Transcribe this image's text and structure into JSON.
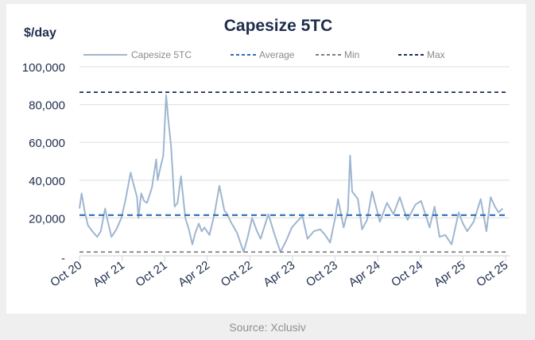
{
  "chart_data": {
    "type": "line",
    "title": "Capesize 5TC",
    "ylabel": "$/day",
    "xlabel": "",
    "ylim": [
      0,
      100000
    ],
    "xlim_months_since_oct20": [
      0,
      60
    ],
    "yticks": [
      {
        "value": 100000,
        "label": "100,000"
      },
      {
        "value": 80000,
        "label": "80,000"
      },
      {
        "value": 60000,
        "label": "60,000"
      },
      {
        "value": 40000,
        "label": "40,000"
      },
      {
        "value": 20000,
        "label": "20,000"
      },
      {
        "value": 0,
        "label": "-"
      }
    ],
    "xticks": [
      {
        "value": 0,
        "label": "Oct 20"
      },
      {
        "value": 6,
        "label": "Apr 21"
      },
      {
        "value": 12,
        "label": "Oct 21"
      },
      {
        "value": 18,
        "label": "Apr 22"
      },
      {
        "value": 24,
        "label": "Oct 22"
      },
      {
        "value": 30,
        "label": "Apr 23"
      },
      {
        "value": 36,
        "label": "Oct 23"
      },
      {
        "value": 42,
        "label": "Apr 24"
      },
      {
        "value": 48,
        "label": "Oct 24"
      },
      {
        "value": 54,
        "label": "Apr 25"
      },
      {
        "value": 60,
        "label": "Oct 25"
      }
    ],
    "grid": true,
    "legend_position": "top",
    "series": [
      {
        "name": "Capesize 5TC",
        "color": "#9fb6d0",
        "style": "solid",
        "x": [
          0,
          0.3,
          0.7,
          1.2,
          1.8,
          2.5,
          3.0,
          3.6,
          4.0,
          4.5,
          5.2,
          5.9,
          6.5,
          7.2,
          7.6,
          8.1,
          8.3,
          8.7,
          9.1,
          9.5,
          10.2,
          10.8,
          11.0,
          11.3,
          11.8,
          12.2,
          12.5,
          12.9,
          13.4,
          13.8,
          14.3,
          14.9,
          15.4,
          15.9,
          16.3,
          16.8,
          17.2,
          17.6,
          18.3,
          19.0,
          19.7,
          20.4,
          20.8,
          21.3,
          22.2,
          23.1,
          23.7,
          24.3,
          25.0,
          25.5,
          26.0,
          26.6,
          27.4,
          28.3,
          29.1,
          29.9,
          30.6,
          31.4,
          32.1,
          33.0,
          33.9,
          34.6,
          35.3,
          36.0,
          36.4,
          37.2,
          37.8,
          38.1,
          38.4,
          39.2,
          39.8,
          40.5,
          41.2,
          42.3,
          42.8,
          43.3,
          44.2,
          45.1,
          45.7,
          46.2,
          47.3,
          48.1,
          48.7,
          49.3,
          50.0,
          50.7,
          51.5,
          52.4,
          53.4,
          54.0,
          54.6,
          55.5,
          56.5,
          57.3,
          57.9,
          58.5,
          59.0,
          59.6
        ],
        "y": [
          25000,
          33000,
          24000,
          16000,
          13000,
          10000,
          13000,
          25000,
          18000,
          10000,
          14000,
          20000,
          30000,
          44000,
          38000,
          31000,
          20000,
          33000,
          29000,
          28000,
          36000,
          51000,
          40000,
          45000,
          53000,
          85000,
          72000,
          58000,
          26000,
          28000,
          42000,
          20000,
          14000,
          6000,
          12000,
          17000,
          13000,
          15000,
          11000,
          22000,
          37000,
          24000,
          22000,
          18000,
          12000,
          2000,
          10000,
          20000,
          13000,
          9000,
          15000,
          22000,
          12000,
          2000,
          8000,
          15000,
          18000,
          21000,
          9000,
          13000,
          14000,
          11000,
          7000,
          20000,
          30000,
          15000,
          24000,
          53000,
          34000,
          30000,
          14000,
          19000,
          34000,
          18000,
          23000,
          28000,
          22000,
          31000,
          24000,
          19000,
          27000,
          29000,
          22000,
          15000,
          26000,
          10000,
          11000,
          6000,
          23000,
          17000,
          13000,
          18000,
          30000,
          13000,
          31000,
          26000,
          23000,
          25000
        ]
      },
      {
        "name": "Average",
        "color": "#2e6fb5",
        "style": "dashed",
        "value": 21500
      },
      {
        "name": "Min",
        "color": "#7f7f7f",
        "style": "dashed",
        "value": 2000
      },
      {
        "name": "Max",
        "color": "#1f2d5c",
        "style": "dashed",
        "value": 86500
      }
    ]
  },
  "source": "Source: Xclusiv"
}
